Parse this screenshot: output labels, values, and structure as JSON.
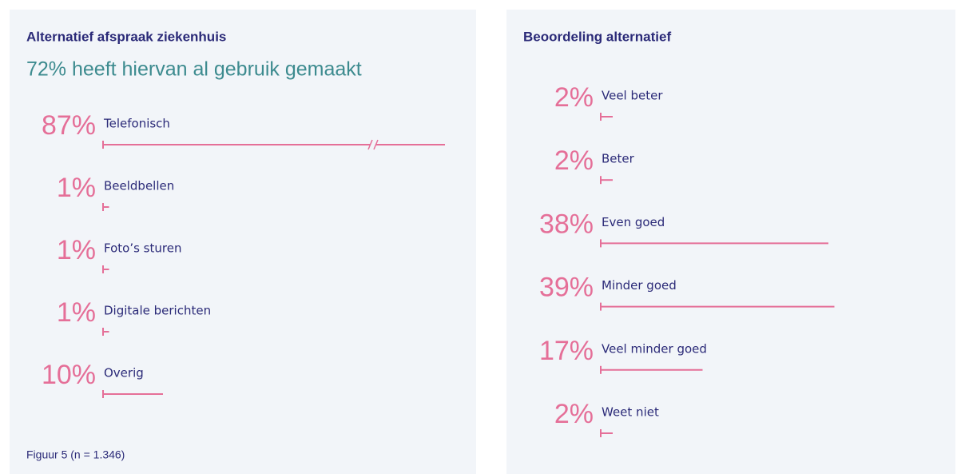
{
  "chart_data": [
    {
      "type": "bar",
      "title": "Alternatief afspraak ziekenhuis",
      "subtitle": "72% heeft hiervan al gebruik gemaakt",
      "categories": [
        "Telefonisch",
        "Beeldbellen",
        "Foto’s sturen",
        "Digitale berichten",
        "Overig"
      ],
      "values": [
        87,
        1,
        1,
        1,
        10
      ],
      "value_labels": [
        "87%",
        "1%",
        "1%",
        "1%",
        "10%"
      ],
      "color": "#e56f98",
      "footnote": "Figuur 5 (n = 1.346)"
    },
    {
      "type": "bar",
      "title": "Beoordeling alternatief",
      "categories": [
        "Veel beter",
        "Beter",
        "Even goed",
        "Minder goed",
        "Veel minder goed",
        "Weet niet"
      ],
      "values": [
        2,
        2,
        38,
        39,
        17,
        2
      ],
      "value_labels": [
        "2%",
        "2%",
        "38%",
        "39%",
        "17%",
        "2%"
      ],
      "color": "#e56f98"
    }
  ]
}
